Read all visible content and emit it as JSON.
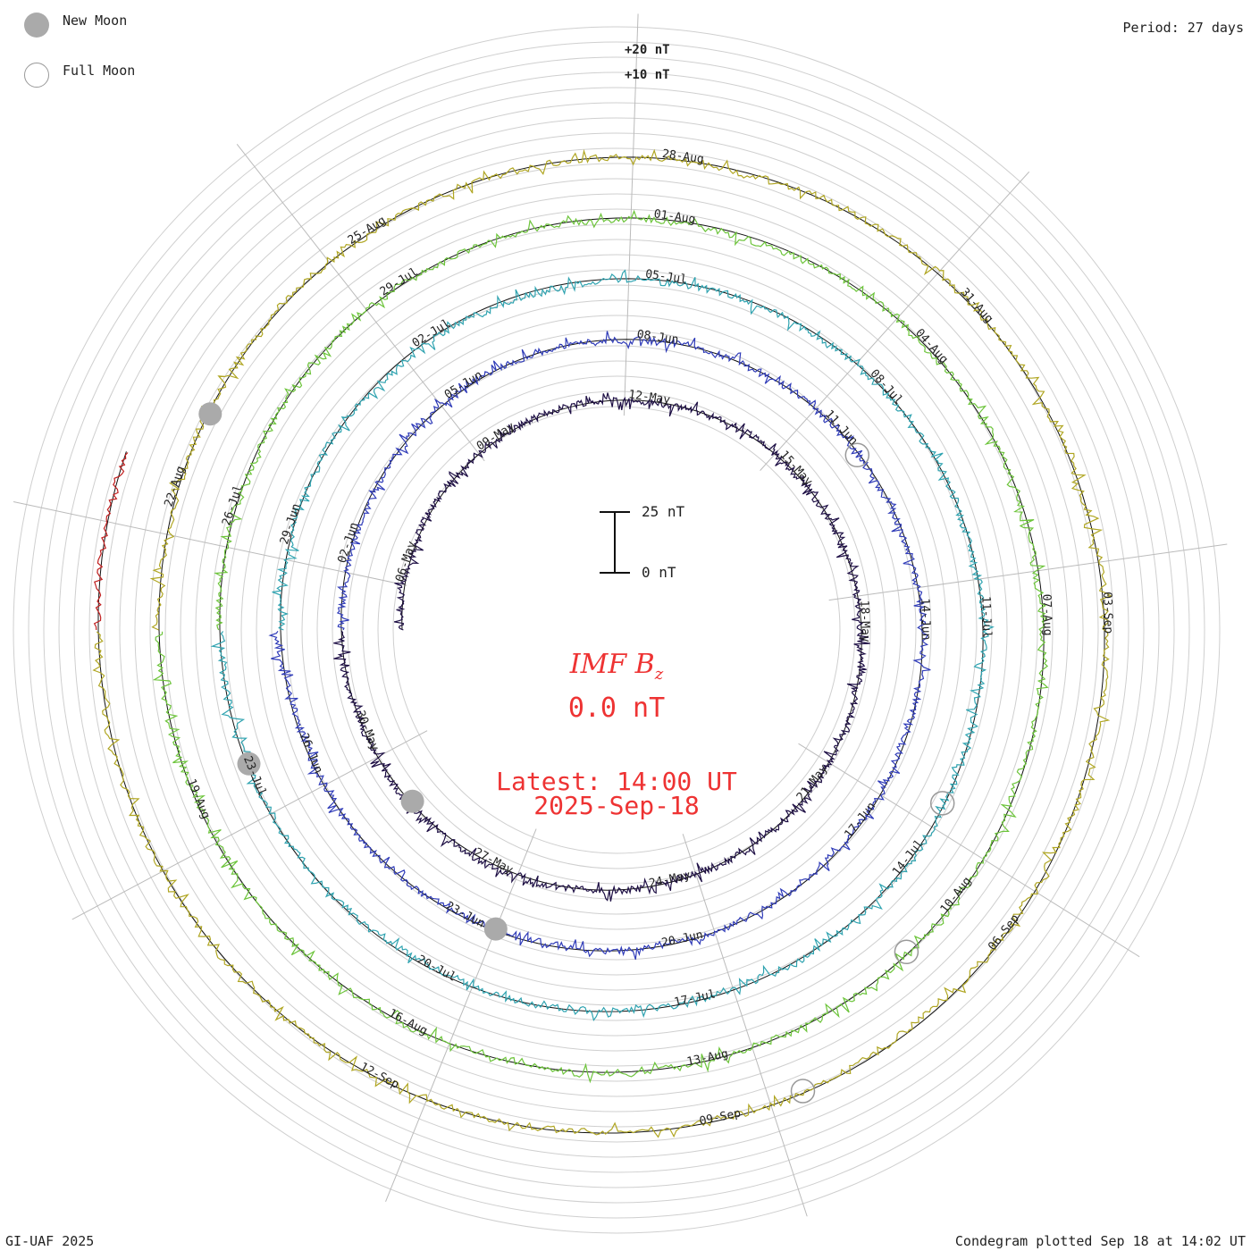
{
  "legend": {
    "new_moon": "New Moon",
    "full_moon": "Full Moon",
    "new_moon_color": "#aaaaaa",
    "full_moon_color": "#999999"
  },
  "period": "Period: 27 days",
  "ring_scale": {
    "plus20": "+20 nT",
    "plus10": "+10 nT"
  },
  "scale_bar": {
    "top": "25 nT",
    "bottom": "0 nT"
  },
  "center": {
    "title_main": "IMF B",
    "title_sub": "z",
    "value": "0.0 nT",
    "latest": "Latest: 14:00 UT",
    "date": "2025-Sep-18",
    "text_color": "#ee3333"
  },
  "footer": {
    "credit": "GI-UAF 2025",
    "plotted": "Condegram plotted Sep 18 at 14:02 UT"
  },
  "chart_data": {
    "type": "line",
    "title": "IMF Bz",
    "period_days": 27,
    "unit": "nT",
    "layout": "spiral condegram",
    "series": [
      {
        "color": "#1e0f45",
        "date_labels": [
          "06-May",
          "09-May",
          "12-May",
          "15-May",
          "18-May",
          "21-May",
          "24-May",
          "27-May",
          "30-May"
        ]
      },
      {
        "color": "#2f3bb8",
        "date_labels": [
          "02-Jun",
          "05-Jun",
          "08-Jun",
          "11-Jun",
          "14-Jun",
          "17-Jun",
          "20-Jun",
          "23-Jun",
          "26-Jun"
        ]
      },
      {
        "color": "#2fa3b0",
        "date_labels": [
          "29-Jun",
          "02-Jul",
          "05-Jul",
          "08-Jul",
          "11-Jul",
          "14-Jul",
          "17-Jul",
          "20-Jul",
          "23-Jul"
        ]
      },
      {
        "color": "#6cc43a",
        "date_labels": [
          "26-Jul",
          "29-Jul",
          "01-Aug",
          "04-Aug",
          "07-Aug",
          "10-Aug",
          "13-Aug",
          "16-Aug",
          "19-Aug"
        ]
      },
      {
        "color": "#b0a623",
        "date_labels": [
          "22-Aug",
          "25-Aug",
          "28-Aug",
          "31-Aug",
          "03-Sep",
          "06-Sep",
          "09-Sep",
          "12-Sep"
        ]
      },
      {
        "color": "#c01f1f",
        "date_labels": []
      }
    ],
    "angle_labels": [
      {
        "text": "06-May",
        "ring": 0,
        "k": 0
      },
      {
        "text": "09-May",
        "ring": 0,
        "k": 1
      },
      {
        "text": "12-May",
        "ring": 0,
        "k": 2
      },
      {
        "text": "15-May",
        "ring": 0,
        "k": 3
      },
      {
        "text": "18-May",
        "ring": 0,
        "k": 4
      },
      {
        "text": "21-May",
        "ring": 0,
        "k": 5
      },
      {
        "text": "24-May",
        "ring": 0,
        "k": 6
      },
      {
        "text": "27-May",
        "ring": 0,
        "k": 7
      },
      {
        "text": "30-May",
        "ring": 0,
        "k": 8
      },
      {
        "text": "02-Jun",
        "ring": 1,
        "k": 0
      },
      {
        "text": "05-Jun",
        "ring": 1,
        "k": 1
      },
      {
        "text": "08-Jun",
        "ring": 1,
        "k": 2
      },
      {
        "text": "11-Jun",
        "ring": 1,
        "k": 3
      },
      {
        "text": "14-Jun",
        "ring": 1,
        "k": 4
      },
      {
        "text": "17-Jun",
        "ring": 1,
        "k": 5
      },
      {
        "text": "20-Jun",
        "ring": 1,
        "k": 6
      },
      {
        "text": "23-Jun",
        "ring": 1,
        "k": 7
      },
      {
        "text": "26-Jun",
        "ring": 1,
        "k": 8
      },
      {
        "text": "29-Jun",
        "ring": 2,
        "k": 0
      },
      {
        "text": "02-Jul",
        "ring": 2,
        "k": 1
      },
      {
        "text": "05-Jul",
        "ring": 2,
        "k": 2
      },
      {
        "text": "08-Jul",
        "ring": 2,
        "k": 3
      },
      {
        "text": "11-Jul",
        "ring": 2,
        "k": 4
      },
      {
        "text": "14-Jul",
        "ring": 2,
        "k": 5
      },
      {
        "text": "17-Jul",
        "ring": 2,
        "k": 6
      },
      {
        "text": "20-Jul",
        "ring": 2,
        "k": 7
      },
      {
        "text": "23-Jul",
        "ring": 2,
        "k": 8
      },
      {
        "text": "26-Jul",
        "ring": 3,
        "k": 0
      },
      {
        "text": "29-Jul",
        "ring": 3,
        "k": 1
      },
      {
        "text": "01-Aug",
        "ring": 3,
        "k": 2
      },
      {
        "text": "04-Aug",
        "ring": 3,
        "k": 3
      },
      {
        "text": "07-Aug",
        "ring": 3,
        "k": 4
      },
      {
        "text": "10-Aug",
        "ring": 3,
        "k": 5
      },
      {
        "text": "13-Aug",
        "ring": 3,
        "k": 6
      },
      {
        "text": "16-Aug",
        "ring": 3,
        "k": 7
      },
      {
        "text": "19-Aug",
        "ring": 3,
        "k": 8
      },
      {
        "text": "22-Aug",
        "ring": 4,
        "k": 0
      },
      {
        "text": "25-Aug",
        "ring": 4,
        "k": 1
      },
      {
        "text": "28-Aug",
        "ring": 4,
        "k": 2
      },
      {
        "text": "31-Aug",
        "ring": 4,
        "k": 3
      },
      {
        "text": "03-Sep",
        "ring": 4,
        "k": 4
      },
      {
        "text": "06-Sep",
        "ring": 4,
        "k": 5
      },
      {
        "text": "09-Sep",
        "ring": 4,
        "k": 6
      },
      {
        "text": "12-Sep",
        "ring": 4,
        "k": 7
      }
    ],
    "new_moons": [
      {
        "ring": 0,
        "k": 7.7
      },
      {
        "ring": 1,
        "k": 7.0
      },
      {
        "ring": 2,
        "k": 8.2
      },
      {
        "ring": 4,
        "k": 0.4
      }
    ],
    "full_moons": [
      {
        "ring": 1,
        "k": 3.3
      },
      {
        "ring": 2,
        "k": 4.9
      },
      {
        "ring": 3,
        "k": 5.4
      },
      {
        "ring": 4,
        "k": 5.9
      }
    ]
  }
}
